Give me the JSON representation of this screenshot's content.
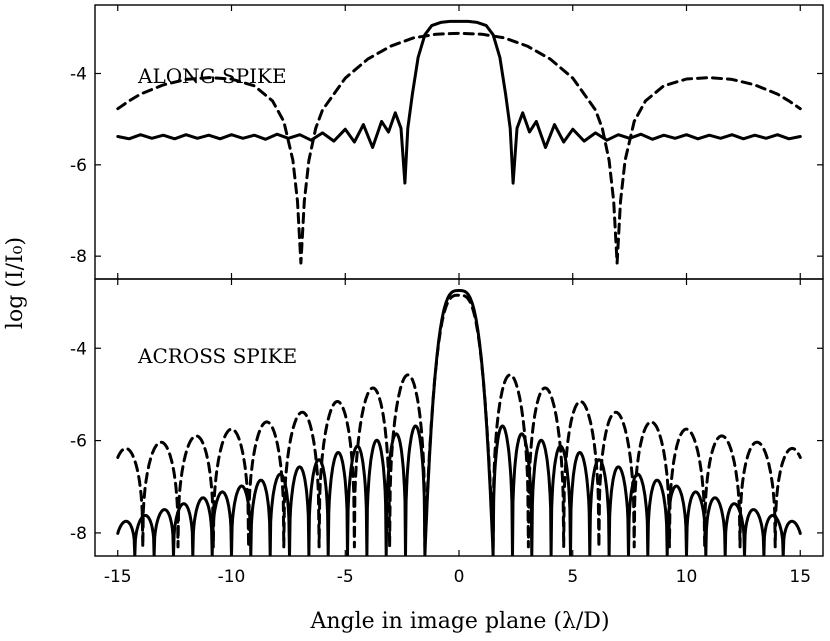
{
  "chart_data": [
    {
      "type": "line",
      "annotation": "ALONG SPIKE",
      "xlabel": "",
      "ylabel": "log (I/I₀)",
      "xlim": [
        -16,
        16
      ],
      "ylim": [
        -8.5,
        -2.5
      ],
      "xticks": [
        "-15",
        "-10",
        "-5",
        "0",
        "5",
        "10",
        "15"
      ],
      "yticks": [
        "-4",
        "-6",
        "-8"
      ],
      "series": [
        {
          "style": "solid",
          "points": [
            [
              -15,
              -5.38
            ],
            [
              -14.5,
              -5.43
            ],
            [
              -14,
              -5.34
            ],
            [
              -13.5,
              -5.42
            ],
            [
              -13,
              -5.35
            ],
            [
              -12.5,
              -5.43
            ],
            [
              -12,
              -5.34
            ],
            [
              -11.5,
              -5.42
            ],
            [
              -11,
              -5.35
            ],
            [
              -10.5,
              -5.43
            ],
            [
              -10,
              -5.34
            ],
            [
              -9.5,
              -5.42
            ],
            [
              -9,
              -5.35
            ],
            [
              -8.5,
              -5.44
            ],
            [
              -8,
              -5.33
            ],
            [
              -7.5,
              -5.42
            ],
            [
              -7,
              -5.34
            ],
            [
              -6.5,
              -5.46
            ],
            [
              -6,
              -5.3
            ],
            [
              -5.5,
              -5.48
            ],
            [
              -5,
              -5.22
            ],
            [
              -4.6,
              -5.5
            ],
            [
              -4.2,
              -5.12
            ],
            [
              -3.8,
              -5.62
            ],
            [
              -3.4,
              -5.05
            ],
            [
              -3.1,
              -5.28
            ],
            [
              -2.8,
              -4.86
            ],
            [
              -2.55,
              -5.2
            ],
            [
              -2.38,
              -6.4
            ],
            [
              -2.25,
              -5.2
            ],
            [
              -2.05,
              -4.45
            ],
            [
              -1.8,
              -3.65
            ],
            [
              -1.5,
              -3.15
            ],
            [
              -1.2,
              -2.95
            ],
            [
              -0.8,
              -2.88
            ],
            [
              -0.4,
              -2.86
            ],
            [
              0,
              -2.86
            ],
            [
              0.4,
              -2.86
            ],
            [
              0.8,
              -2.88
            ],
            [
              1.2,
              -2.95
            ],
            [
              1.5,
              -3.15
            ],
            [
              1.8,
              -3.65
            ],
            [
              2.05,
              -4.45
            ],
            [
              2.25,
              -5.2
            ],
            [
              2.38,
              -6.4
            ],
            [
              2.55,
              -5.2
            ],
            [
              2.8,
              -4.86
            ],
            [
              3.1,
              -5.28
            ],
            [
              3.4,
              -5.05
            ],
            [
              3.8,
              -5.62
            ],
            [
              4.2,
              -5.12
            ],
            [
              4.6,
              -5.5
            ],
            [
              5,
              -5.22
            ],
            [
              5.5,
              -5.48
            ],
            [
              6,
              -5.3
            ],
            [
              6.5,
              -5.46
            ],
            [
              7,
              -5.34
            ],
            [
              7.5,
              -5.42
            ],
            [
              8,
              -5.33
            ],
            [
              8.5,
              -5.44
            ],
            [
              9,
              -5.35
            ],
            [
              9.5,
              -5.42
            ],
            [
              10,
              -5.34
            ],
            [
              10.5,
              -5.43
            ],
            [
              11,
              -5.35
            ],
            [
              11.5,
              -5.42
            ],
            [
              12,
              -5.34
            ],
            [
              12.5,
              -5.43
            ],
            [
              13,
              -5.35
            ],
            [
              13.5,
              -5.42
            ],
            [
              14,
              -5.34
            ],
            [
              14.5,
              -5.43
            ],
            [
              15,
              -5.38
            ]
          ]
        },
        {
          "style": "dashed",
          "points": [
            [
              -15,
              -4.77
            ],
            [
              -14.5,
              -4.6
            ],
            [
              -14,
              -4.45
            ],
            [
              -13,
              -4.25
            ],
            [
              -12,
              -4.13
            ],
            [
              -11,
              -4.09
            ],
            [
              -10,
              -4.12
            ],
            [
              -9,
              -4.27
            ],
            [
              -8.2,
              -4.6
            ],
            [
              -7.7,
              -5.05
            ],
            [
              -7.3,
              -5.9
            ],
            [
              -7.1,
              -6.8
            ],
            [
              -6.95,
              -8.15
            ],
            [
              -6.8,
              -6.8
            ],
            [
              -6.6,
              -5.9
            ],
            [
              -6.3,
              -5.2
            ],
            [
              -6,
              -4.8
            ],
            [
              -5,
              -4.1
            ],
            [
              -4,
              -3.68
            ],
            [
              -3,
              -3.4
            ],
            [
              -2,
              -3.22
            ],
            [
              -1,
              -3.14
            ],
            [
              0,
              -3.12
            ],
            [
              1,
              -3.14
            ],
            [
              2,
              -3.22
            ],
            [
              3,
              -3.4
            ],
            [
              4,
              -3.68
            ],
            [
              5,
              -4.1
            ],
            [
              6,
              -4.8
            ],
            [
              6.3,
              -5.2
            ],
            [
              6.6,
              -5.9
            ],
            [
              6.8,
              -6.8
            ],
            [
              6.95,
              -8.15
            ],
            [
              7.1,
              -6.8
            ],
            [
              7.3,
              -5.9
            ],
            [
              7.7,
              -5.05
            ],
            [
              8.2,
              -4.6
            ],
            [
              9,
              -4.27
            ],
            [
              10,
              -4.12
            ],
            [
              11,
              -4.09
            ],
            [
              12,
              -4.13
            ],
            [
              13,
              -4.25
            ],
            [
              14,
              -4.45
            ],
            [
              14.5,
              -4.6
            ],
            [
              15,
              -4.77
            ]
          ]
        }
      ]
    },
    {
      "type": "line",
      "annotation": "ACROSS SPIKE",
      "xlabel": "Angle in image plane (λ/D)",
      "ylabel": "log (I/I₀)",
      "xlim": [
        -16,
        16
      ],
      "ylim": [
        -8.5,
        -2.5
      ],
      "xticks": [
        "-15",
        "-10",
        "-5",
        "0",
        "5",
        "10",
        "15"
      ],
      "yticks": [
        "-4",
        "-6",
        "-8"
      ],
      "series": [
        {
          "style": "solid",
          "center_peak": -2.75,
          "first_null": 1.5,
          "lobe_spacing": 0.85,
          "null_floor": -8.5,
          "sidelobe_envelope": [
            [
              1.5,
              -5.6
            ],
            [
              3,
              -5.9
            ],
            [
              5,
              -6.2
            ],
            [
              8,
              -6.75
            ],
            [
              11,
              -7.2
            ],
            [
              15,
              -7.8
            ]
          ]
        },
        {
          "style": "dashed",
          "center_peak": -2.85,
          "first_null": 1.5,
          "lobe_spacing": 1.55,
          "null_floor": -8.3,
          "sidelobe_envelope": [
            [
              1.5,
              -4.45
            ],
            [
              3,
              -4.7
            ],
            [
              5,
              -5.1
            ],
            [
              8,
              -5.55
            ],
            [
              11,
              -5.85
            ],
            [
              15,
              -6.2
            ]
          ]
        }
      ]
    }
  ]
}
